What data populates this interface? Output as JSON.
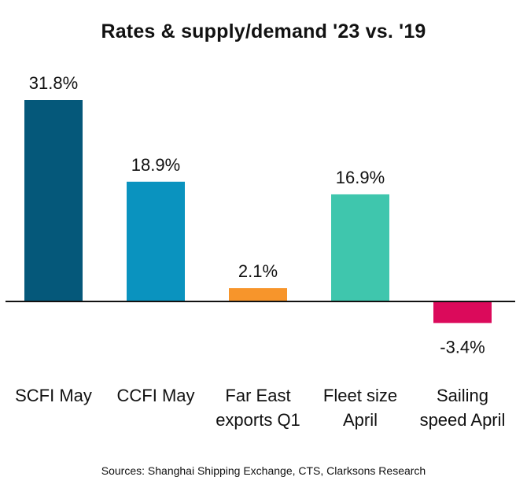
{
  "chart_data": {
    "type": "bar",
    "title": "Rates & supply/demand  '23 vs. '19",
    "categories": [
      [
        "SCFI May"
      ],
      [
        "CCFI May"
      ],
      [
        "Far East",
        "exports Q1"
      ],
      [
        "Fleet size",
        "April"
      ],
      [
        "Sailing",
        "speed April"
      ]
    ],
    "values": [
      31.8,
      18.9,
      2.1,
      16.9,
      -3.4
    ],
    "value_labels": [
      "31.8%",
      "18.9%",
      "2.1%",
      "16.9%",
      "-3.4%"
    ],
    "colors": [
      "#05587A",
      "#0A93BF",
      "#F7952B",
      "#3FC6AD",
      "#DB0A5B"
    ],
    "xlabel": "",
    "ylabel": "",
    "grid": false,
    "source": "Sources: Shanghai Shipping Exchange, CTS, Clarksons Research"
  }
}
